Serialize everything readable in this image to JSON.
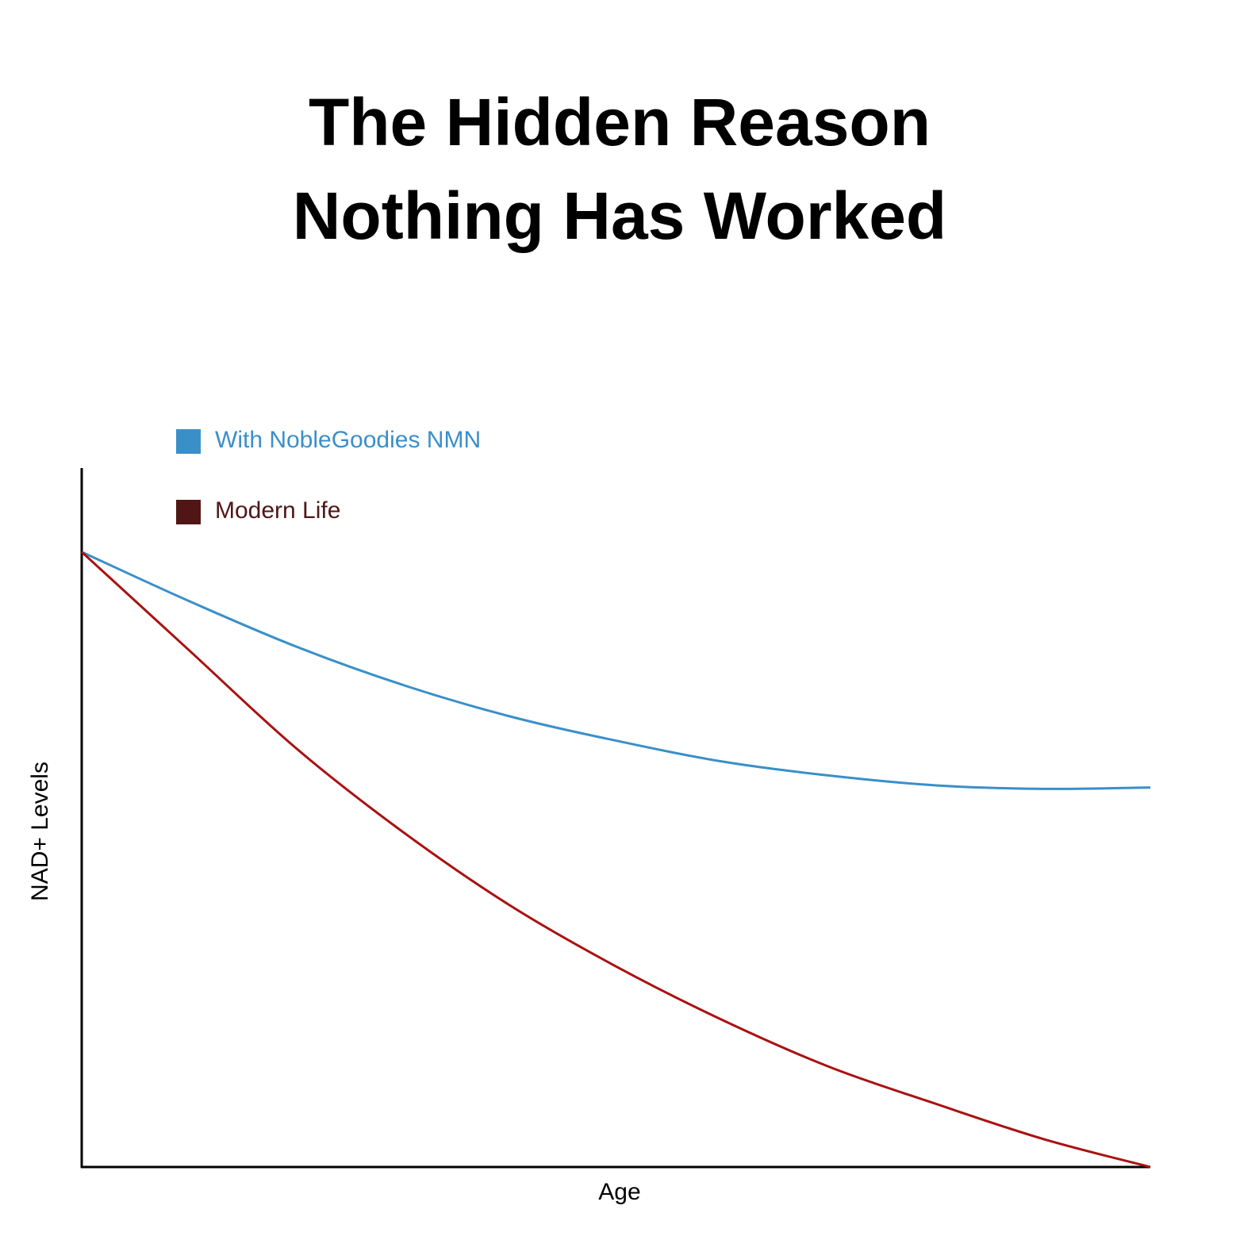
{
  "chart_data": {
    "type": "line",
    "title": "The Hidden Reason Nothing Has Worked",
    "x_label": "Age",
    "y_label": "NAD+ Levels",
    "x": [
      0,
      10,
      20,
      30,
      40,
      50,
      60,
      70,
      80,
      90,
      100
    ],
    "xlim": [
      0,
      100
    ],
    "ylim": [
      0,
      100
    ],
    "series": [
      {
        "name": "With NobleGoodies NMN",
        "color": "#3a8fc9",
        "legend_color": "#3a8fc9",
        "values": [
          88,
          81,
          74.5,
          69,
          64.5,
          61,
          58,
          56,
          54.6,
          54.1,
          54.3
        ]
      },
      {
        "name": "Modern Life",
        "color": "#aa1111",
        "legend_color": "#501616",
        "values": [
          88,
          74,
          60,
          48,
          37.5,
          28.7,
          21,
          14.3,
          9,
          4,
          0
        ]
      }
    ]
  }
}
